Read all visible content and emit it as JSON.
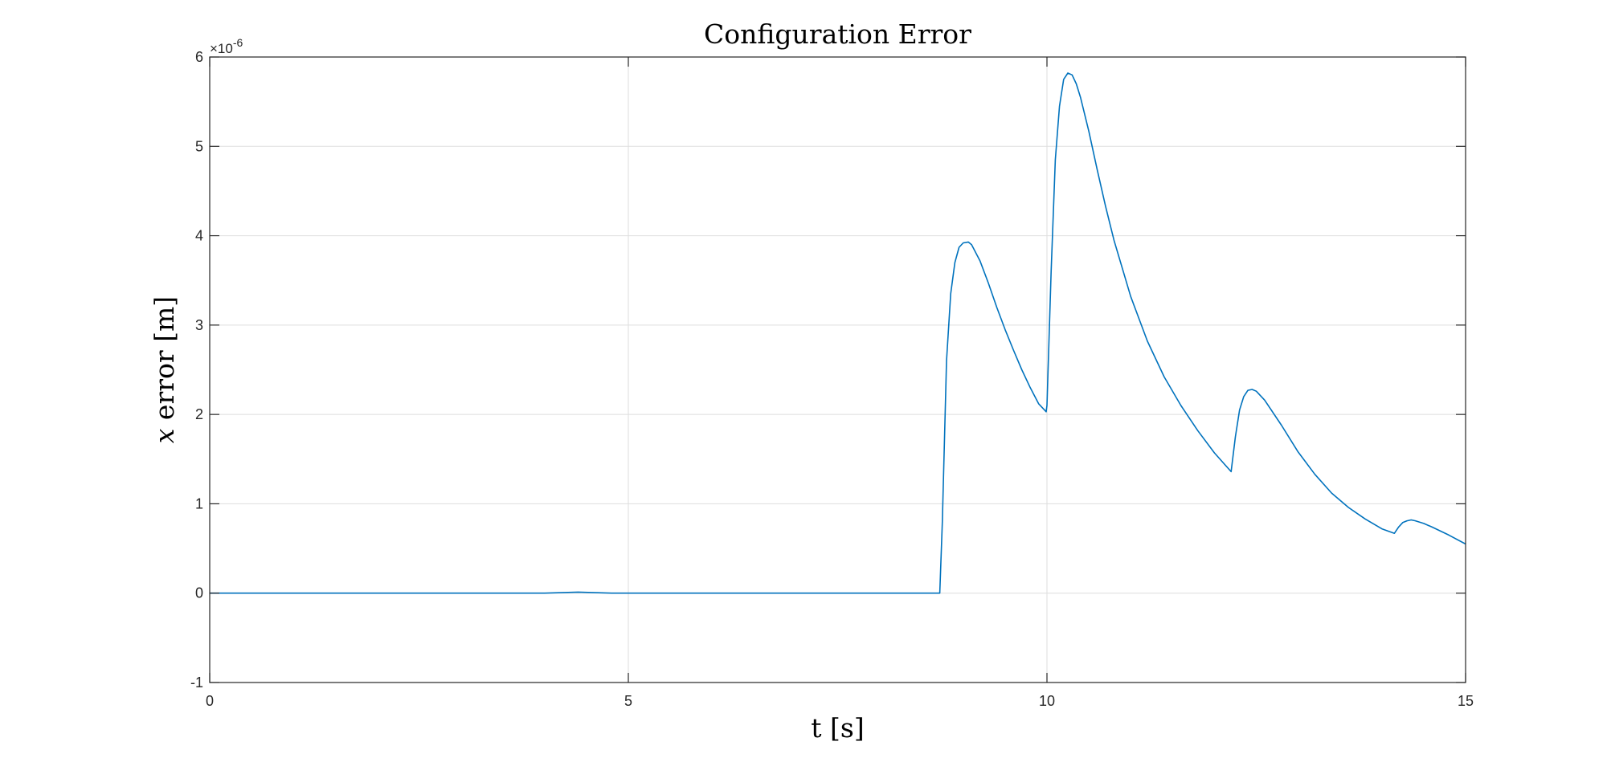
{
  "chart_data": {
    "type": "line",
    "title": "Configuration Error",
    "xlabel": "t [s]",
    "ylabel_var": "x",
    "ylabel_rest": " error [m]",
    "y_exponent_base": "×10",
    "y_exponent_power": "-6",
    "xlim": [
      0,
      15
    ],
    "ylim": [
      -1,
      6
    ],
    "x_ticks": [
      0,
      5,
      10,
      15
    ],
    "y_ticks": [
      -1,
      0,
      1,
      2,
      3,
      4,
      5,
      6
    ],
    "grid": true,
    "line_color": "#0072BD",
    "series": [
      {
        "x": [
          0,
          4.0,
          4.4,
          4.8,
          5.5,
          8.6,
          8.72,
          8.75,
          8.8,
          8.85,
          8.9,
          8.95,
          9.0,
          9.06,
          9.1,
          9.2,
          9.3,
          9.4,
          9.5,
          9.6,
          9.7,
          9.8,
          9.9,
          9.99,
          10.0,
          10.05,
          10.1,
          10.15,
          10.2,
          10.25,
          10.3,
          10.35,
          10.4,
          10.5,
          10.6,
          10.7,
          10.8,
          11.0,
          11.2,
          11.4,
          11.6,
          11.8,
          12.0,
          12.2,
          12.25,
          12.3,
          12.35,
          12.4,
          12.45,
          12.5,
          12.6,
          12.8,
          13.0,
          13.2,
          13.4,
          13.6,
          13.8,
          14.0,
          14.15,
          14.2,
          14.25,
          14.3,
          14.35,
          14.4,
          14.5,
          14.6,
          14.8,
          15.0
        ],
        "y": [
          0,
          0,
          0.012,
          0,
          0,
          0,
          0,
          0.8,
          2.6,
          3.35,
          3.7,
          3.87,
          3.92,
          3.93,
          3.9,
          3.72,
          3.47,
          3.2,
          2.95,
          2.72,
          2.5,
          2.3,
          2.12,
          2.03,
          2.1,
          3.6,
          4.85,
          5.45,
          5.75,
          5.82,
          5.8,
          5.7,
          5.55,
          5.17,
          4.74,
          4.33,
          3.95,
          3.32,
          2.82,
          2.42,
          2.1,
          1.82,
          1.57,
          1.36,
          1.75,
          2.05,
          2.2,
          2.27,
          2.28,
          2.26,
          2.16,
          1.88,
          1.58,
          1.33,
          1.12,
          0.96,
          0.83,
          0.72,
          0.67,
          0.74,
          0.79,
          0.81,
          0.82,
          0.81,
          0.78,
          0.74,
          0.65,
          0.55
        ]
      }
    ]
  }
}
